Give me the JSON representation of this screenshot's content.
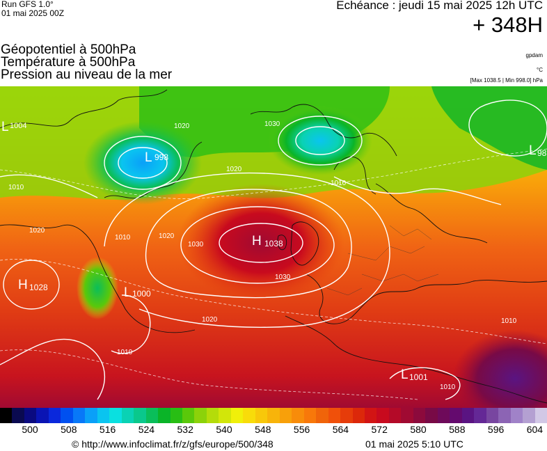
{
  "header": {
    "run_line1": "Run GFS 1.0°",
    "run_line2": "01 mai 2025 00Z",
    "echeance": "Echéance : jeudi 15 mai 2025 12h UTC",
    "lead_time": "+ 348H",
    "title_line1": "Géopotentiel à 500hPa",
    "title_line2": "Température à 500hPa",
    "title_line3": "Pression au niveau de la mer",
    "unit_gpdam": "gpdam",
    "unit_celsius": "°C",
    "pressure_range": "[Max 1038.5 | Min 998.0] hPa"
  },
  "map": {
    "pressure_centers": [
      {
        "type": "H",
        "value": "1038"
      },
      {
        "type": "H",
        "value": "1028"
      },
      {
        "type": "L",
        "value": "998"
      },
      {
        "type": "L",
        "value": "1000"
      },
      {
        "type": "L",
        "value": "1001"
      },
      {
        "type": "L",
        "value": "1004"
      },
      {
        "type": "L",
        "value": "98"
      }
    ],
    "isobar_labels": [
      "1030",
      "1030",
      "1020",
      "1020",
      "1020",
      "1020",
      "1010",
      "1010",
      "1010",
      "1010",
      "1010",
      "1010",
      "1020",
      "1030"
    ],
    "colors": {
      "low": "#1f8fff",
      "mid_low": "#2bc02b",
      "mid": "#f6e20a",
      "mid_high": "#ff8a00",
      "high": "#e01818",
      "very_high": "#a0082c",
      "extreme": "#5a1070"
    }
  },
  "legend": {
    "colors": [
      "#000000",
      "#0a0a50",
      "#0a0a80",
      "#0a14b4",
      "#0a28dc",
      "#0050f0",
      "#0878f8",
      "#0aa0f8",
      "#0ac4f0",
      "#0ae0e0",
      "#0ad2b4",
      "#0ac88c",
      "#0abe5a",
      "#0ab428",
      "#28be14",
      "#5ac80a",
      "#8cd20a",
      "#b4dc0a",
      "#d2e60a",
      "#f0f00a",
      "#f8dc0a",
      "#f8c80a",
      "#f8b40a",
      "#f8a00a",
      "#f88c0a",
      "#f8780a",
      "#f0640a",
      "#f0500a",
      "#e63c0a",
      "#dc280a",
      "#d21414",
      "#c80a1e",
      "#b40a28",
      "#a00a32",
      "#8c0a3c",
      "#780a46",
      "#6e0a5a",
      "#640a6e",
      "#5a1482",
      "#642896",
      "#7846a0",
      "#8c64b4",
      "#a082c8",
      "#b4a0d2",
      "#d2c8e6"
    ],
    "labels": [
      "500",
      "508",
      "516",
      "524",
      "532",
      "540",
      "548",
      "556",
      "564",
      "572",
      "580",
      "588",
      "596",
      "604"
    ]
  },
  "footer": {
    "source": "© http://www.infoclimat.fr/z/gfs/europe/500/348",
    "generated": "01 mai 2025  5:10 UTC"
  }
}
